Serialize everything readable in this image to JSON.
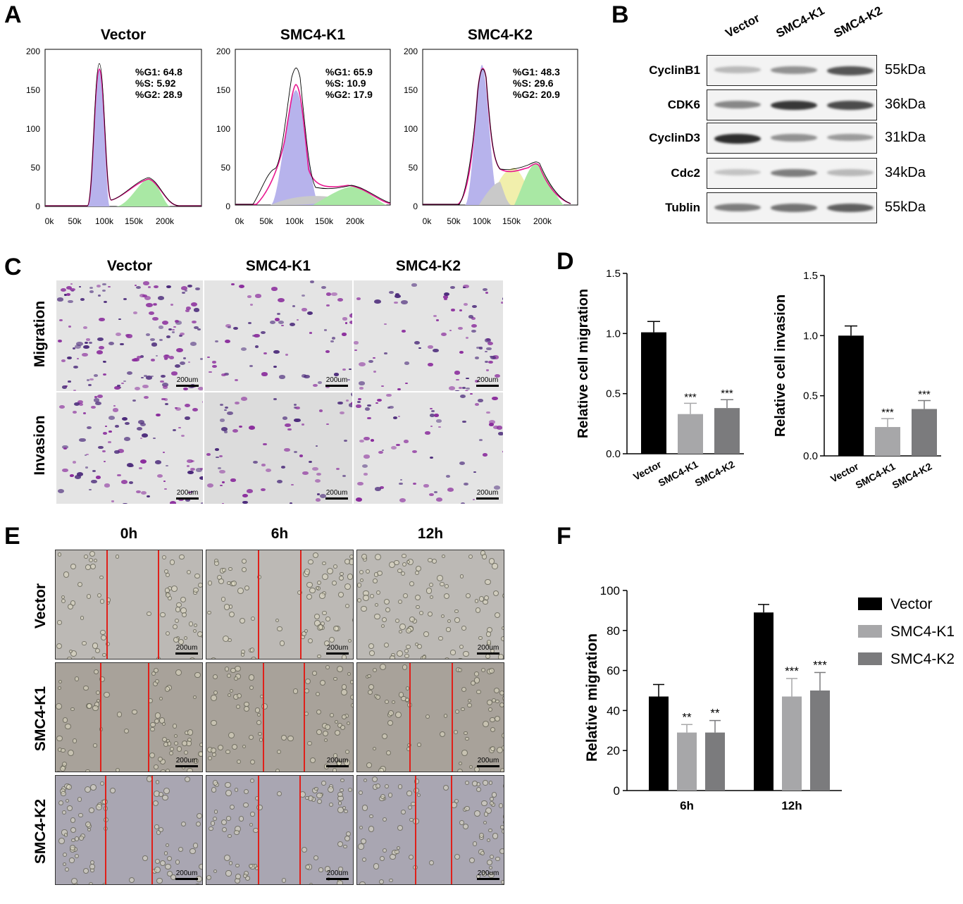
{
  "panel_letters": {
    "A": "A",
    "B": "B",
    "C": "C",
    "D": "D",
    "E": "E",
    "F": "F"
  },
  "flow": [
    {
      "title": "Vector",
      "g1": "%G1: 64.8",
      "s": "%S: 5.92",
      "g2": "%G2: 28.9",
      "yticks": [
        "200",
        "150",
        "100",
        "50",
        "0"
      ],
      "xticks": [
        "0k",
        "50k",
        "100k",
        "150k",
        "200k"
      ]
    },
    {
      "title": "SMC4-K1",
      "g1": "%G1: 65.9",
      "s": "%S: 10.9",
      "g2": "%G2: 17.9",
      "yticks": [
        "200",
        "150",
        "100",
        "50",
        "0"
      ],
      "xticks": [
        "0k",
        "50k",
        "100k",
        "150k",
        "200k"
      ]
    },
    {
      "title": "SMC4-K2",
      "g1": "%G1: 48.3",
      "s": "%S: 29.6",
      "g2": "%G2: 20.9",
      "yticks": [
        "200",
        "150",
        "100",
        "50",
        "0"
      ],
      "xticks": [
        "0k",
        "50k",
        "100k",
        "150k",
        "200k"
      ]
    }
  ],
  "western": {
    "lanes": [
      "Vector",
      "SMC4-K1",
      "SMC4-K2"
    ],
    "rows": [
      {
        "protein": "CyclinB1",
        "kda": "55kDa",
        "intensity": [
          0.25,
          0.45,
          0.75
        ]
      },
      {
        "protein": "CDK6",
        "kda": "36kDa",
        "intensity": [
          0.5,
          0.9,
          0.8
        ]
      },
      {
        "protein": "CyclinD3",
        "kda": "31kDa",
        "intensity": [
          0.95,
          0.45,
          0.4
        ]
      },
      {
        "protein": "Cdc2",
        "kda": "34kDa",
        "intensity": [
          0.2,
          0.55,
          0.25
        ]
      },
      {
        "protein": "Tublin",
        "kda": "55kDa",
        "intensity": [
          0.55,
          0.6,
          0.7
        ]
      }
    ]
  },
  "transwell": {
    "columns": [
      "Vector",
      "SMC4-K1",
      "SMC4-K2"
    ],
    "rows": [
      "Migration",
      "Invasion"
    ],
    "scale": "200um"
  },
  "wound": {
    "columns": [
      "0h",
      "6h",
      "12h"
    ],
    "rows": [
      "Vector",
      "SMC4-K1",
      "SMC4-K2"
    ],
    "scale": "200um"
  },
  "colors": {
    "vector": "#000000",
    "k1": "#a7a7a9",
    "k2": "#7b7b7d",
    "g1": "#b7b3ec",
    "s": "#f1efac",
    "g2": "#a9e8a4",
    "fit": "#e8158f"
  },
  "chart_data": [
    {
      "type": "bar",
      "id": "D-migration",
      "categories": [
        "Vector",
        "SMC4-K1",
        "SMC4-K2"
      ],
      "values": [
        1.01,
        0.33,
        0.38
      ],
      "errors": [
        0.09,
        0.09,
        0.07
      ],
      "significance": [
        "",
        "***",
        "***"
      ],
      "ylabel": "Relative cell migration",
      "ylim": [
        0,
        1.5
      ],
      "yticks": [
        "0.0",
        "0.5",
        "1.0",
        "1.5"
      ]
    },
    {
      "type": "bar",
      "id": "D-invasion",
      "categories": [
        "Vector",
        "SMC4-K1",
        "SMC4-K2"
      ],
      "values": [
        1.0,
        0.24,
        0.39
      ],
      "errors": [
        0.08,
        0.07,
        0.07
      ],
      "significance": [
        "",
        "***",
        "***"
      ],
      "ylabel": "Relative cell invasion",
      "ylim": [
        0,
        1.5
      ],
      "yticks": [
        "0.0",
        "0.5",
        "1.0",
        "1.5"
      ]
    },
    {
      "type": "bar",
      "id": "F",
      "categories": [
        "6h",
        "12h"
      ],
      "series": [
        {
          "name": "Vector",
          "values": [
            47,
            89
          ],
          "errors": [
            6,
            4
          ],
          "significance": [
            "",
            ""
          ]
        },
        {
          "name": "SMC4-K1",
          "values": [
            29,
            47
          ],
          "errors": [
            4,
            9
          ],
          "significance": [
            "**",
            "***"
          ]
        },
        {
          "name": "SMC4-K2",
          "values": [
            29,
            50
          ],
          "errors": [
            6,
            9
          ],
          "significance": [
            "**",
            "***"
          ]
        }
      ],
      "ylabel": "Relative migration",
      "ylim": [
        0,
        100
      ],
      "yticks": [
        "0",
        "20",
        "40",
        "60",
        "80",
        "100"
      ],
      "legend": "top-right"
    }
  ]
}
